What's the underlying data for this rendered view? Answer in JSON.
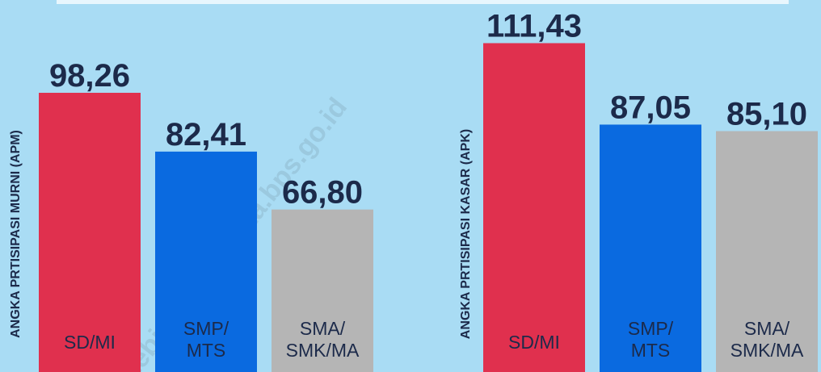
{
  "chart_data": [
    {
      "type": "bar",
      "y_label": "ANGKA PRTISIPASI MURNI (APM)",
      "categories": [
        "SD/MI",
        "SMP/ MTS",
        "SMA/ SMK/MA"
      ],
      "values": [
        98.26,
        82.41,
        66.8
      ],
      "value_labels": [
        "98,26",
        "82,41",
        "66,80"
      ],
      "colors": [
        "#e0304e",
        "#0a6ae0",
        "#b5b5b5"
      ],
      "ylim": [
        23,
        100
      ]
    },
    {
      "type": "bar",
      "y_label": "ANGKA PRTISIPASI KASAR (APK)",
      "categories": [
        "SD/MI",
        "SMP/ MTS",
        "SMA/ SMK/MA"
      ],
      "values": [
        111.43,
        87.05,
        85.1
      ],
      "value_labels": [
        "111,43",
        "87,05",
        "85,10"
      ],
      "colors": [
        "#e0304e",
        "#0a6ae0",
        "#b5b5b5"
      ],
      "ylim": [
        13,
        120
      ]
    }
  ],
  "watermark": "tebingtinggikota.bps.go.id"
}
